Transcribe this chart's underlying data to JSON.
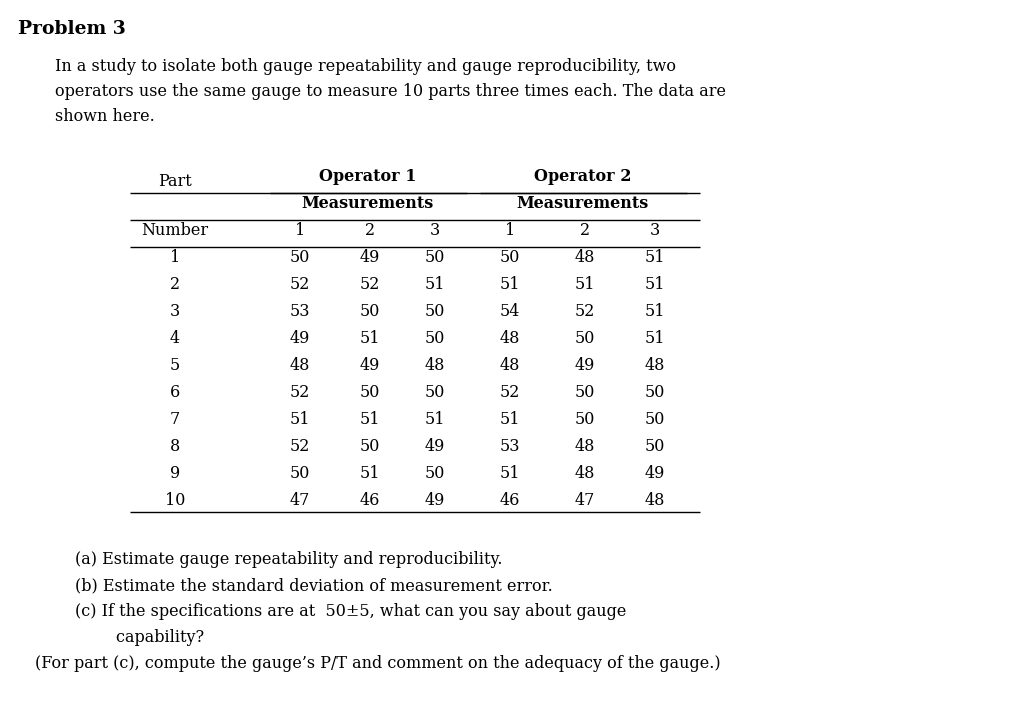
{
  "title": "Problem 3",
  "intro_text": "In a study to isolate both gauge repeatability and gauge reproducibility, two\noperators use the same gauge to measure 10 parts three times each. The data are\nshown here.",
  "op1_header": "Operator 1",
  "op2_header": "Operator 2",
  "meas_header": "Measurements",
  "part_col_header": "Part",
  "number_col_header": "Number",
  "sub_headers": [
    "1",
    "2",
    "3",
    "1",
    "2",
    "3"
  ],
  "parts": [
    1,
    2,
    3,
    4,
    5,
    6,
    7,
    8,
    9,
    10
  ],
  "op1_data": [
    [
      50,
      49,
      50
    ],
    [
      52,
      52,
      51
    ],
    [
      53,
      50,
      50
    ],
    [
      49,
      51,
      50
    ],
    [
      48,
      49,
      48
    ],
    [
      52,
      50,
      50
    ],
    [
      51,
      51,
      51
    ],
    [
      52,
      50,
      49
    ],
    [
      50,
      51,
      50
    ],
    [
      47,
      46,
      49
    ]
  ],
  "op2_data": [
    [
      50,
      48,
      51
    ],
    [
      51,
      51,
      51
    ],
    [
      54,
      52,
      51
    ],
    [
      48,
      50,
      51
    ],
    [
      48,
      49,
      48
    ],
    [
      52,
      50,
      50
    ],
    [
      51,
      50,
      50
    ],
    [
      53,
      48,
      50
    ],
    [
      51,
      48,
      49
    ],
    [
      46,
      47,
      48
    ]
  ],
  "footer_a": "(a) Estimate gauge repeatability and reproducibility.",
  "footer_b": "(b) Estimate the standard deviation of measurement error.",
  "footer_c1": "(c) If the specifications are at  50±5, what can you say about gauge",
  "footer_c2": "        capability?",
  "footer_d": "(For part (c), compute the gauge’s P/T and comment on the adequacy of the gauge.)",
  "bg_color": "#ffffff",
  "text_color": "#000000",
  "font_family": "DejaVu Serif"
}
